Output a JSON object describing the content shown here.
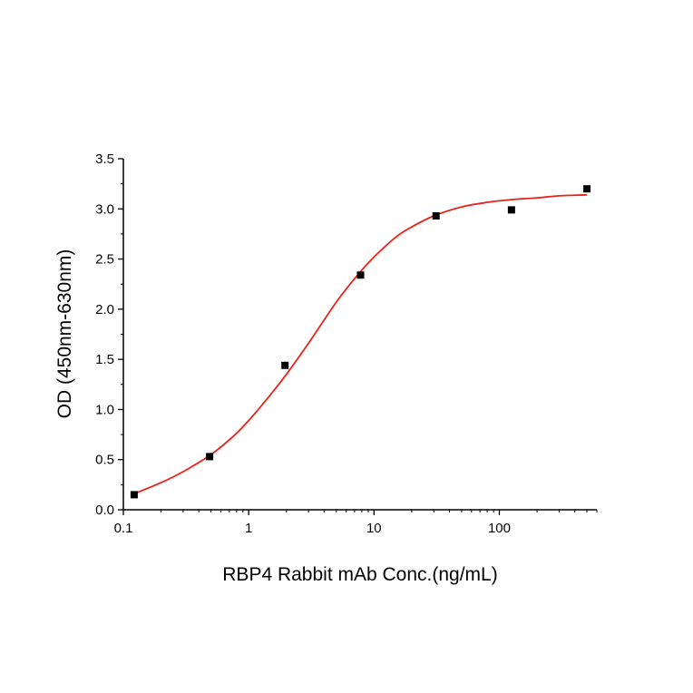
{
  "chart_data": {
    "type": "scatter",
    "title": "",
    "xlabel": "RBP4 Rabbit mAb Conc.(ng/mL)",
    "ylabel": "OD (450nm-630nm)",
    "x_scale": "log",
    "xlim": [
      0.1,
      600
    ],
    "ylim": [
      0,
      3.5
    ],
    "x_ticks": [
      0.1,
      1,
      10,
      100
    ],
    "x_tick_labels": [
      "0.1",
      "1",
      "10",
      "100"
    ],
    "y_ticks": [
      0,
      0.5,
      1,
      1.5,
      2,
      2.5,
      3,
      3.5
    ],
    "y_tick_labels": [
      "0.0",
      "0.5",
      "1.0",
      "1.5",
      "2.0",
      "2.5",
      "3.0",
      "3.5"
    ],
    "grid": false,
    "legend": "none",
    "series": [
      {
        "kind": "points",
        "marker": "square",
        "color": "#000000",
        "x": [
          0.122,
          0.488,
          1.95,
          7.81,
          31.25,
          125,
          500
        ],
        "y": [
          0.15,
          0.53,
          1.44,
          2.34,
          2.93,
          2.99,
          3.2
        ]
      },
      {
        "kind": "fit-curve",
        "color": "#e8231b",
        "x": [
          0.122,
          0.2,
          0.3,
          0.5,
          0.75,
          1,
          1.5,
          2,
          3,
          5,
          7.5,
          10,
          15,
          20,
          30,
          50,
          75,
          100,
          150,
          200,
          300,
          500
        ],
        "y": [
          0.16,
          0.27,
          0.38,
          0.55,
          0.73,
          0.89,
          1.15,
          1.35,
          1.66,
          2.07,
          2.35,
          2.52,
          2.72,
          2.82,
          2.93,
          3.02,
          3.06,
          3.08,
          3.1,
          3.11,
          3.13,
          3.14
        ]
      }
    ]
  }
}
